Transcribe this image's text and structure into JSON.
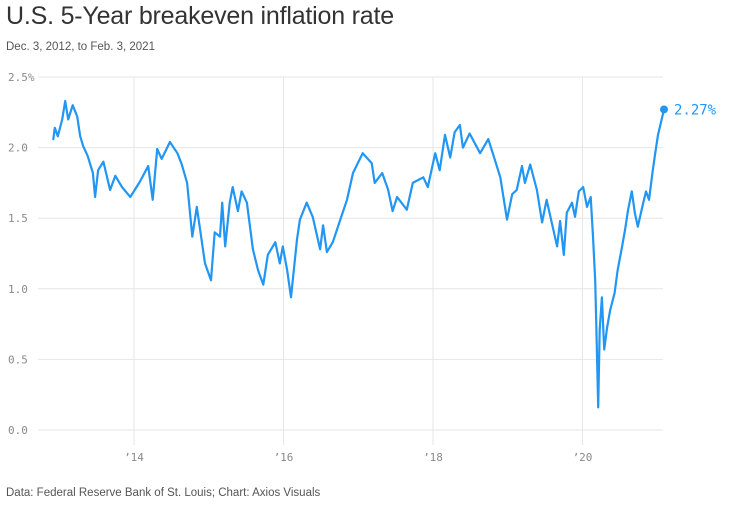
{
  "header": {
    "title": "U.S. 5-Year breakeven inflation rate",
    "subtitle": "Dec. 3, 2012, to Feb. 3, 2021"
  },
  "footer": {
    "source": "Data: Federal Reserve Bank of St. Louis; Chart: Axios Visuals"
  },
  "colors": {
    "line": "#2196f3",
    "grid": "#e6e6e6",
    "tick_text": "#8a8a8a"
  },
  "chart_data": {
    "type": "line",
    "title": "U.S. 5-Year breakeven inflation rate",
    "subtitle": "Dec. 3, 2012, to Feb. 3, 2021",
    "xlabel": "",
    "ylabel": "",
    "xlim": [
      2012.92,
      2021.09
    ],
    "ylim": [
      0,
      2.5
    ],
    "grid": true,
    "y_ticks": [
      {
        "value": 0,
        "label": "0.0"
      },
      {
        "value": 0.5,
        "label": "0.5"
      },
      {
        "value": 1.0,
        "label": "1.0"
      },
      {
        "value": 1.5,
        "label": "1.5"
      },
      {
        "value": 2.0,
        "label": "2.0"
      },
      {
        "value": 2.5,
        "label": "2.5%"
      }
    ],
    "x_ticks": [
      {
        "value": 2014,
        "label": "’14"
      },
      {
        "value": 2016,
        "label": "’16"
      },
      {
        "value": 2018,
        "label": "’18"
      },
      {
        "value": 2020,
        "label": "’20"
      }
    ],
    "end_annotation": {
      "x": 2021.09,
      "value": 2.27,
      "label": "2.27%"
    },
    "series": [
      {
        "name": "5-Year breakeven inflation rate",
        "x": [
          2012.92,
          2012.94,
          2012.98,
          2013.04,
          2013.08,
          2013.12,
          2013.18,
          2013.24,
          2013.28,
          2013.32,
          2013.38,
          2013.45,
          2013.48,
          2013.52,
          2013.59,
          2013.68,
          2013.75,
          2013.84,
          2013.95,
          2014.08,
          2014.19,
          2014.25,
          2014.31,
          2014.37,
          2014.48,
          2014.58,
          2014.64,
          2014.71,
          2014.78,
          2014.84,
          2014.95,
          2015.03,
          2015.08,
          2015.15,
          2015.18,
          2015.22,
          2015.28,
          2015.32,
          2015.39,
          2015.44,
          2015.51,
          2015.59,
          2015.66,
          2015.73,
          2015.79,
          2015.89,
          2015.95,
          2015.99,
          2016.05,
          2016.1,
          2016.18,
          2016.22,
          2016.31,
          2016.39,
          2016.49,
          2016.53,
          2016.58,
          2016.66,
          2016.76,
          2016.85,
          2016.93,
          2017.06,
          2017.18,
          2017.22,
          2017.32,
          2017.4,
          2017.46,
          2017.52,
          2017.65,
          2017.73,
          2017.87,
          2017.93,
          2018.03,
          2018.09,
          2018.16,
          2018.23,
          2018.29,
          2018.36,
          2018.4,
          2018.49,
          2018.63,
          2018.74,
          2018.83,
          2018.9,
          2018.99,
          2019.06,
          2019.12,
          2019.19,
          2019.23,
          2019.3,
          2019.39,
          2019.46,
          2019.52,
          2019.61,
          2019.66,
          2019.7,
          2019.75,
          2019.79,
          2019.86,
          2019.9,
          2019.95,
          2020.01,
          2020.06,
          2020.11,
          2020.14,
          2020.17,
          2020.19,
          2020.21,
          2020.23,
          2020.26,
          2020.29,
          2020.33,
          2020.37,
          2020.43,
          2020.47,
          2020.53,
          2020.57,
          2020.61,
          2020.66,
          2020.7,
          2020.74,
          2020.8,
          2020.85,
          2020.89,
          2020.94,
          2020.97,
          2021.01,
          2021.05,
          2021.09
        ],
        "values": [
          2.06,
          2.14,
          2.08,
          2.2,
          2.33,
          2.2,
          2.3,
          2.22,
          2.08,
          2.01,
          1.94,
          1.82,
          1.65,
          1.84,
          1.9,
          1.7,
          1.8,
          1.72,
          1.65,
          1.76,
          1.87,
          1.63,
          1.99,
          1.92,
          2.04,
          1.96,
          1.88,
          1.75,
          1.37,
          1.58,
          1.18,
          1.06,
          1.4,
          1.37,
          1.61,
          1.3,
          1.61,
          1.72,
          1.55,
          1.69,
          1.61,
          1.28,
          1.13,
          1.03,
          1.24,
          1.33,
          1.18,
          1.3,
          1.13,
          0.94,
          1.35,
          1.49,
          1.61,
          1.51,
          1.28,
          1.45,
          1.26,
          1.33,
          1.49,
          1.63,
          1.82,
          1.96,
          1.89,
          1.75,
          1.82,
          1.7,
          1.55,
          1.65,
          1.56,
          1.75,
          1.79,
          1.72,
          1.96,
          1.84,
          2.09,
          1.93,
          2.11,
          2.16,
          2.0,
          2.1,
          1.96,
          2.06,
          1.91,
          1.79,
          1.49,
          1.67,
          1.7,
          1.87,
          1.75,
          1.88,
          1.7,
          1.47,
          1.63,
          1.42,
          1.3,
          1.48,
          1.24,
          1.54,
          1.61,
          1.51,
          1.69,
          1.72,
          1.58,
          1.65,
          1.37,
          1.06,
          0.62,
          0.16,
          0.71,
          0.94,
          0.57,
          0.73,
          0.85,
          0.97,
          1.13,
          1.3,
          1.42,
          1.56,
          1.69,
          1.54,
          1.44,
          1.58,
          1.69,
          1.63,
          1.84,
          1.95,
          2.09,
          2.18,
          2.27
        ]
      }
    ]
  }
}
